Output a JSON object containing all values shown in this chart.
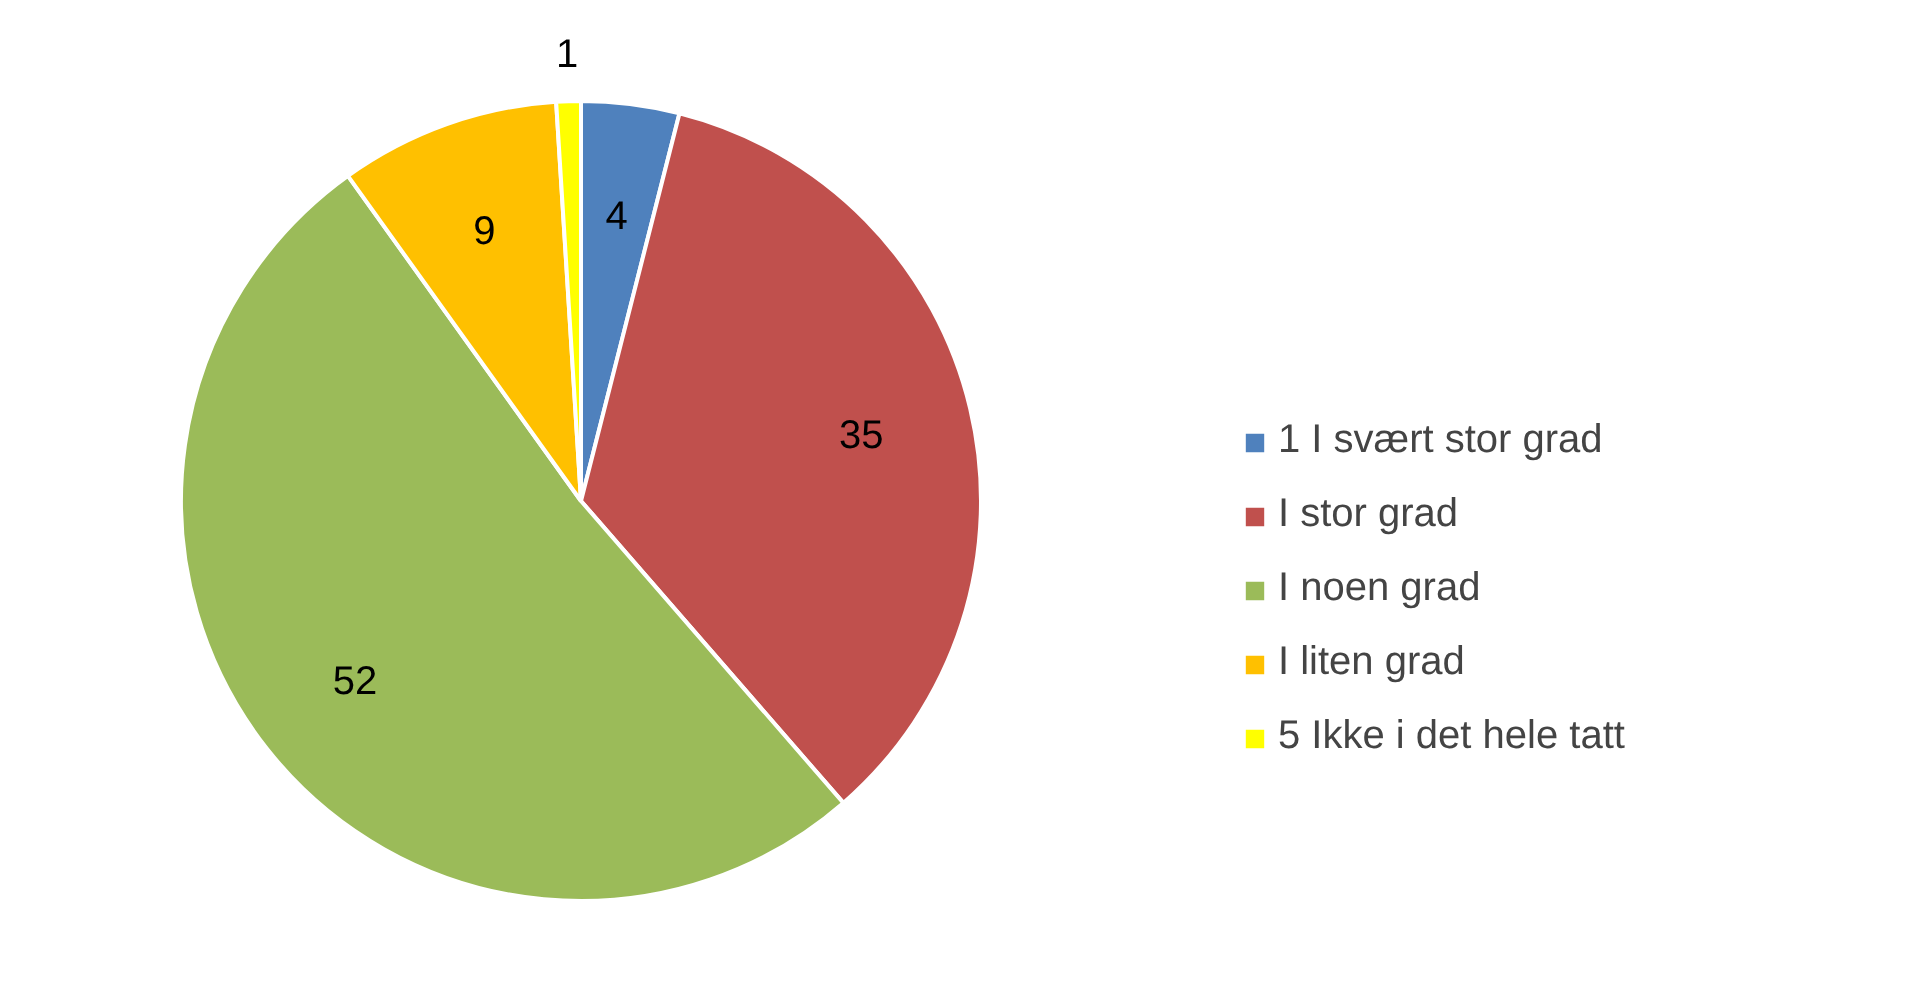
{
  "chart_data": {
    "type": "pie",
    "categories": [
      "1 I svært stor grad",
      "I stor grad",
      "I noen grad",
      "I liten grad",
      "5 Ikke i det hele tatt"
    ],
    "values": [
      4,
      35,
      52,
      9,
      1
    ],
    "colors": [
      "#4f81bd",
      "#c0504d",
      "#9bbb59",
      "#ffc000",
      "#ffff00"
    ],
    "data_labels": true,
    "legend": "right"
  }
}
